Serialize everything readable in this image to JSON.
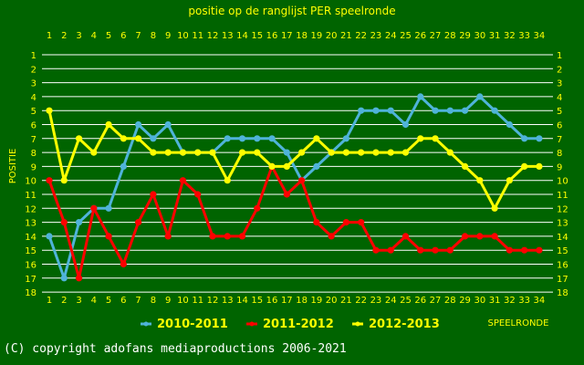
{
  "copyright": "(C) copyright adofans mediaproductions 2006-2021",
  "chart_data": {
    "type": "line",
    "title": "positie op de ranglijst PER speelronde",
    "xlabel": "SPEELRONDE",
    "ylabel": "POSITIE",
    "x": [
      1,
      2,
      3,
      4,
      5,
      6,
      7,
      8,
      9,
      10,
      11,
      12,
      13,
      14,
      15,
      16,
      17,
      18,
      19,
      20,
      21,
      22,
      23,
      24,
      25,
      26,
      27,
      28,
      29,
      30,
      31,
      32,
      33,
      34
    ],
    "ylim": [
      1,
      18
    ],
    "y_inverted": true,
    "grid": true,
    "legend_position": "bottom",
    "colors": {
      "background": "#006400",
      "grid": "#ffffff",
      "text": "#ffff00"
    },
    "series": [
      {
        "name": "2010-2011",
        "color": "#4fb3d9",
        "values": [
          14,
          17,
          13,
          12,
          12,
          9,
          6,
          7,
          6,
          8,
          8,
          8,
          7,
          7,
          7,
          7,
          8,
          10,
          9,
          8,
          7,
          5,
          5,
          5,
          6,
          4,
          5,
          5,
          5,
          4,
          5,
          6,
          7,
          7
        ]
      },
      {
        "name": "2011-2012",
        "color": "#ff0000",
        "values": [
          10,
          13,
          17,
          12,
          14,
          16,
          13,
          11,
          14,
          10,
          11,
          14,
          14,
          14,
          12,
          9,
          11,
          10,
          13,
          14,
          13,
          13,
          15,
          15,
          14,
          15,
          15,
          15,
          14,
          14,
          14,
          15,
          15,
          15
        ]
      },
      {
        "name": "2012-2013",
        "color": "#ffff00",
        "values": [
          5,
          10,
          7,
          8,
          6,
          7,
          7,
          8,
          8,
          8,
          8,
          8,
          10,
          8,
          8,
          9,
          9,
          8,
          7,
          8,
          8,
          8,
          8,
          8,
          8,
          7,
          7,
          8,
          9,
          10,
          12,
          10,
          9,
          9
        ]
      }
    ]
  }
}
